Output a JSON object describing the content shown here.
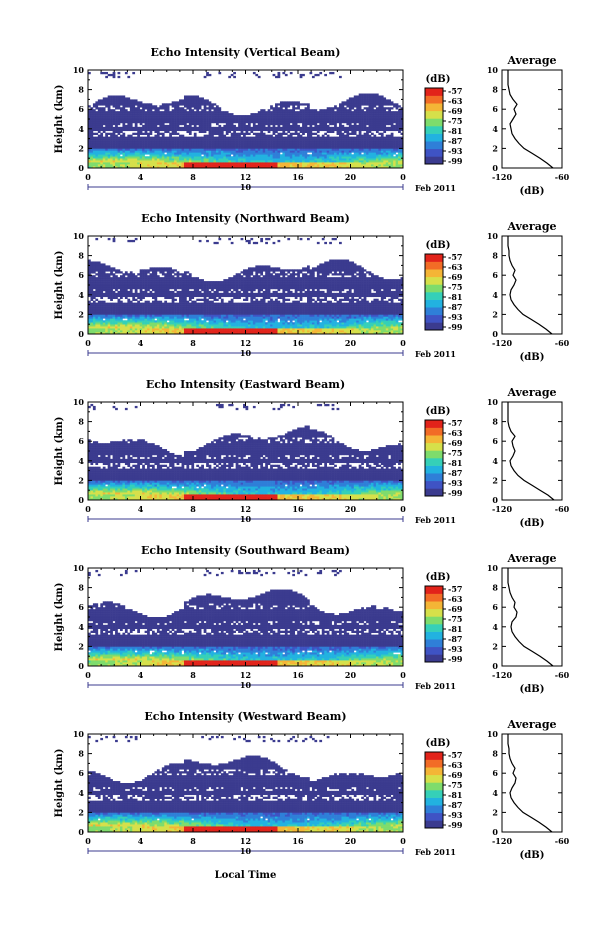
{
  "figure": {
    "xlabel": "Local Time",
    "date_label": "Feb 2011",
    "day_label": "10",
    "colorbar_unit": "(dB)",
    "colorbar_ticks": [
      "-57",
      "-63",
      "-69",
      "-75",
      "-81",
      "-87",
      "-93",
      "-99"
    ],
    "avg_title": "Average",
    "avg_xlabel": "(dB)",
    "avg_xticks": [
      "-120",
      "-60"
    ]
  },
  "chart_data": [
    {
      "type": "heatmap",
      "title": "Echo Intensity (Vertical Beam)",
      "xlabel": "Local Time",
      "ylabel": "Height (km)",
      "xticks": [
        "0",
        "4",
        "8",
        "12",
        "16",
        "20",
        "0"
      ],
      "yticks": [
        "0",
        "2",
        "4",
        "6",
        "8",
        "10"
      ],
      "xlim": [
        0,
        24
      ],
      "ylim": [
        0,
        10
      ],
      "colorbar": {
        "unit": "(dB)",
        "range": [
          -99,
          -57
        ]
      },
      "average_profile": {
        "xlim": [
          -120,
          -60
        ],
        "ylim": [
          0,
          10
        ],
        "x": [
          -69,
          -75,
          -82,
          -90,
          -98,
          -103,
          -107,
          -110,
          -111,
          -112,
          -109,
          -106,
          -108,
          -105,
          -109,
          -112,
          -113,
          -114,
          -114,
          -114,
          -114
        ],
        "y": [
          0,
          0.5,
          1,
          1.5,
          2,
          2.5,
          3,
          3.5,
          4,
          4.5,
          5,
          5.5,
          6,
          6.5,
          7,
          7.5,
          8,
          8.5,
          9,
          9.5,
          10
        ]
      }
    },
    {
      "type": "heatmap",
      "title": "Echo Intensity (Northward Beam)",
      "xlabel": "Local Time",
      "ylabel": "Height (km)",
      "xticks": [
        "0",
        "4",
        "8",
        "12",
        "16",
        "20",
        "0"
      ],
      "yticks": [
        "0",
        "2",
        "4",
        "6",
        "8",
        "10"
      ],
      "xlim": [
        0,
        24
      ],
      "ylim": [
        0,
        10
      ],
      "colorbar": {
        "unit": "(dB)",
        "range": [
          -99,
          -57
        ]
      },
      "average_profile": {
        "xlim": [
          -120,
          -60
        ],
        "ylim": [
          0,
          10
        ],
        "x": [
          -70,
          -76,
          -83,
          -91,
          -99,
          -104,
          -108,
          -111,
          -112,
          -111,
          -108,
          -106,
          -109,
          -107,
          -110,
          -112,
          -113,
          -113,
          -114,
          -114,
          -114
        ],
        "y": [
          0,
          0.5,
          1,
          1.5,
          2,
          2.5,
          3,
          3.5,
          4,
          4.5,
          5,
          5.5,
          6,
          6.5,
          7,
          7.5,
          8,
          8.5,
          9,
          9.5,
          10
        ]
      }
    },
    {
      "type": "heatmap",
      "title": "Echo Intensity (Eastward Beam)",
      "xlabel": "Local Time",
      "ylabel": "Height (km)",
      "xticks": [
        "0",
        "4",
        "8",
        "12",
        "16",
        "20",
        "0"
      ],
      "yticks": [
        "0",
        "2",
        "4",
        "6",
        "8",
        "10"
      ],
      "xlim": [
        0,
        24
      ],
      "ylim": [
        0,
        10
      ],
      "colorbar": {
        "unit": "(dB)",
        "range": [
          -99,
          -57
        ]
      },
      "average_profile": {
        "xlim": [
          -120,
          -60
        ],
        "ylim": [
          0,
          10
        ],
        "x": [
          -68,
          -74,
          -82,
          -90,
          -98,
          -104,
          -108,
          -111,
          -112,
          -109,
          -107,
          -109,
          -110,
          -107,
          -111,
          -113,
          -114,
          -114,
          -114,
          -114,
          -114
        ],
        "y": [
          0,
          0.5,
          1,
          1.5,
          2,
          2.5,
          3,
          3.5,
          4,
          4.5,
          5,
          5.5,
          6,
          6.5,
          7,
          7.5,
          8,
          8.5,
          9,
          9.5,
          10
        ]
      }
    },
    {
      "type": "heatmap",
      "title": "Echo Intensity (Southward Beam)",
      "xlabel": "Local Time",
      "ylabel": "Height (km)",
      "xticks": [
        "0",
        "4",
        "8",
        "12",
        "16",
        "20",
        "0"
      ],
      "yticks": [
        "0",
        "2",
        "4",
        "6",
        "8",
        "10"
      ],
      "xlim": [
        0,
        24
      ],
      "ylim": [
        0,
        10
      ],
      "colorbar": {
        "unit": "(dB)",
        "range": [
          -99,
          -57
        ]
      },
      "average_profile": {
        "xlim": [
          -120,
          -60
        ],
        "ylim": [
          0,
          10
        ],
        "x": [
          -69,
          -75,
          -82,
          -90,
          -98,
          -103,
          -107,
          -110,
          -111,
          -110,
          -106,
          -105,
          -108,
          -107,
          -110,
          -112,
          -113,
          -114,
          -114,
          -114,
          -114
        ],
        "y": [
          0,
          0.5,
          1,
          1.5,
          2,
          2.5,
          3,
          3.5,
          4,
          4.5,
          5,
          5.5,
          6,
          6.5,
          7,
          7.5,
          8,
          8.5,
          9,
          9.5,
          10
        ]
      }
    },
    {
      "type": "heatmap",
      "title": "Echo Intensity (Westward Beam)",
      "xlabel": "Local Time",
      "ylabel": "Height (km)",
      "xticks": [
        "0",
        "4",
        "8",
        "12",
        "16",
        "20",
        "0"
      ],
      "yticks": [
        "0",
        "2",
        "4",
        "6",
        "8",
        "10"
      ],
      "xlim": [
        0,
        24
      ],
      "ylim": [
        0,
        10
      ],
      "colorbar": {
        "unit": "(dB)",
        "range": [
          -99,
          -57
        ]
      },
      "average_profile": {
        "xlim": [
          -120,
          -60
        ],
        "ylim": [
          0,
          10
        ],
        "x": [
          -70,
          -76,
          -83,
          -91,
          -99,
          -104,
          -108,
          -111,
          -112,
          -110,
          -107,
          -106,
          -109,
          -107,
          -110,
          -112,
          -113,
          -113,
          -114,
          -114,
          -114
        ],
        "y": [
          0,
          0.5,
          1,
          1.5,
          2,
          2.5,
          3,
          3.5,
          4,
          4.5,
          5,
          5.5,
          6,
          6.5,
          7,
          7.5,
          8,
          8.5,
          9,
          9.5,
          10
        ]
      }
    }
  ]
}
